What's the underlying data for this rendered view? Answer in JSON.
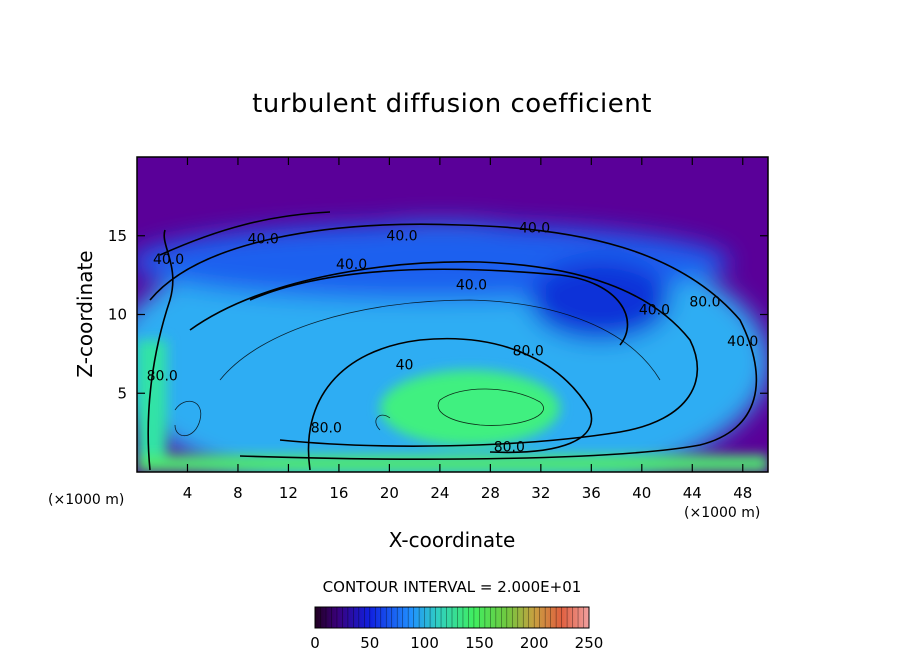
{
  "chart_data": {
    "type": "heatmap",
    "title": "turbulent diffusion coefficient",
    "xlabel": "X-coordinate",
    "ylabel": "Z-coordinate",
    "x_unit": "(×1000 m)",
    "y_unit": "(×1000 m)",
    "xlim": [
      0,
      50
    ],
    "ylim": [
      0,
      20
    ],
    "x_ticks": [
      4,
      8,
      12,
      16,
      20,
      24,
      28,
      32,
      36,
      40,
      44,
      48
    ],
    "y_ticks": [
      5,
      10,
      15
    ],
    "contour_interval_text": "CONTOUR INTERVAL = 2.000E+01",
    "contour_labels": [
      {
        "x": 10.0,
        "z": 14.5,
        "text": "40.0"
      },
      {
        "x": 21.0,
        "z": 14.7,
        "text": "40.0"
      },
      {
        "x": 31.5,
        "z": 15.2,
        "text": "40.0"
      },
      {
        "x": 17.0,
        "z": 12.9,
        "text": "40.0"
      },
      {
        "x": 26.5,
        "z": 11.6,
        "text": "40.0"
      },
      {
        "x": 41.0,
        "z": 10.0,
        "text": "40.0"
      },
      {
        "x": 45.0,
        "z": 10.5,
        "text": "80.0"
      },
      {
        "x": 31.0,
        "z": 7.4,
        "text": "80.0"
      },
      {
        "x": 2.0,
        "z": 5.8,
        "text": "80.0"
      },
      {
        "x": 15.0,
        "z": 2.5,
        "text": "80.0"
      },
      {
        "x": 29.5,
        "z": 1.3,
        "text": "80.0"
      },
      {
        "x": 2.5,
        "z": 13.2,
        "text": "40.0"
      },
      {
        "x": 48.0,
        "z": 8.0,
        "text": "40.0"
      },
      {
        "x": 21.2,
        "z": 6.5,
        "text": "40"
      }
    ],
    "colorbar": {
      "ticks": [
        0,
        50,
        100,
        150,
        200,
        250
      ],
      "range": [
        0,
        250
      ]
    },
    "field_regions": [
      {
        "name": "upper-layer",
        "value": 5
      },
      {
        "name": "main-vortex",
        "value": 75
      },
      {
        "name": "vortex-core",
        "value": 130
      },
      {
        "name": "upper-band",
        "value": 45
      },
      {
        "name": "right-low-region",
        "value": 30
      },
      {
        "name": "left-wall",
        "value": 110
      },
      {
        "name": "bottom-strip",
        "value": 140
      }
    ]
  }
}
